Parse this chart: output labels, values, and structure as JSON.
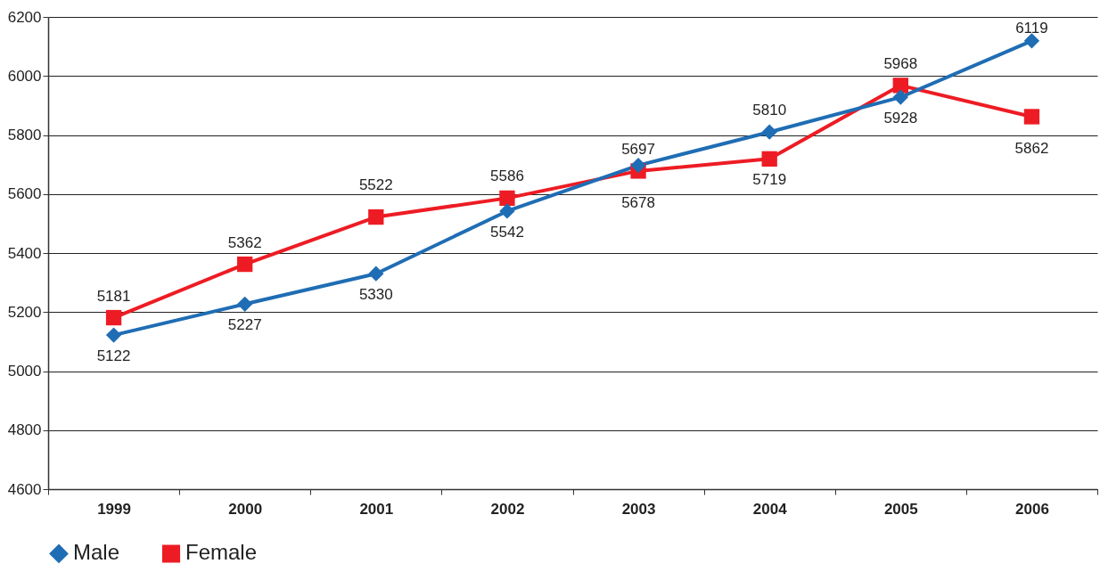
{
  "chart_data": {
    "type": "line",
    "categories": [
      "1999",
      "2000",
      "2001",
      "2002",
      "2003",
      "2004",
      "2005",
      "2006"
    ],
    "series": [
      {
        "name": "Male",
        "color": "#1f6db4",
        "marker": "diamond",
        "values": [
          5122,
          5227,
          5330,
          5542,
          5697,
          5810,
          5928,
          6119
        ]
      },
      {
        "name": "Female",
        "color": "#ed1c24",
        "marker": "square",
        "values": [
          5181,
          5362,
          5522,
          5586,
          5678,
          5719,
          5968,
          5862
        ]
      }
    ],
    "ylim": [
      4600,
      6200
    ],
    "yticks": [
      4600,
      4800,
      5000,
      5200,
      5400,
      5600,
      5800,
      6000,
      6200
    ],
    "grid": "y",
    "legend": "bottom",
    "data_labels": true
  }
}
